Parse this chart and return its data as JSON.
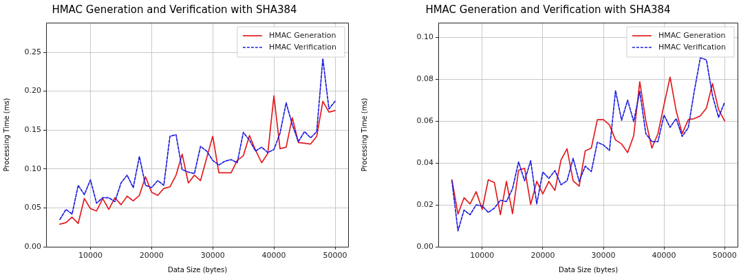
{
  "chart_data": [
    {
      "type": "line",
      "title": "HMAC Generation and Verification with SHA384",
      "xlabel": "Data Size (bytes)",
      "ylabel": "Processing Time (ms)",
      "x": [
        5000,
        6000,
        7000,
        8000,
        9000,
        10000,
        11000,
        12000,
        13000,
        14000,
        15000,
        16000,
        17000,
        18000,
        19000,
        20000,
        21000,
        22000,
        23000,
        24000,
        25000,
        26000,
        27000,
        28000,
        29000,
        30000,
        31000,
        32000,
        33000,
        34000,
        35000,
        36000,
        37000,
        38000,
        39000,
        40000,
        41000,
        42000,
        43000,
        44000,
        45000,
        46000,
        47000,
        48000,
        49000,
        50000
      ],
      "series": [
        {
          "name": "HMAC Generation",
          "color": "#e31a1c",
          "line_style": "solid",
          "values": [
            0.029,
            0.031,
            0.038,
            0.03,
            0.062,
            0.049,
            0.046,
            0.062,
            0.048,
            0.063,
            0.054,
            0.065,
            0.059,
            0.066,
            0.09,
            0.07,
            0.066,
            0.075,
            0.077,
            0.092,
            0.119,
            0.082,
            0.092,
            0.085,
            0.114,
            0.142,
            0.095,
            0.095,
            0.095,
            0.111,
            0.117,
            0.143,
            0.124,
            0.108,
            0.12,
            0.194,
            0.126,
            0.128,
            0.166,
            0.134,
            0.133,
            0.132,
            0.142,
            0.187,
            0.173,
            0.175
          ]
        },
        {
          "name": "HMAC Verification",
          "color": "#1c1ce0",
          "line_style": "dashed",
          "values": [
            0.035,
            0.048,
            0.042,
            0.079,
            0.067,
            0.086,
            0.056,
            0.063,
            0.063,
            0.058,
            0.082,
            0.092,
            0.076,
            0.116,
            0.079,
            0.076,
            0.085,
            0.079,
            0.142,
            0.144,
            0.099,
            0.096,
            0.094,
            0.129,
            0.123,
            0.111,
            0.105,
            0.11,
            0.112,
            0.108,
            0.147,
            0.137,
            0.123,
            0.128,
            0.121,
            0.125,
            0.146,
            0.185,
            0.157,
            0.135,
            0.148,
            0.14,
            0.148,
            0.242,
            0.177,
            0.187
          ]
        }
      ],
      "xlim": [
        2750,
        52250
      ],
      "xticks": [
        10000,
        20000,
        30000,
        40000,
        50000
      ],
      "ylim": [
        0,
        0.288
      ],
      "yticks": [
        {
          "value": 0,
          "label": "0.00"
        },
        {
          "value": 0.05,
          "label": "0.05"
        },
        {
          "value": 0.1,
          "label": "0.10"
        },
        {
          "value": 0.15,
          "label": "0.15"
        },
        {
          "value": 0.2,
          "label": "0.20"
        },
        {
          "value": 0.25,
          "label": "0.25"
        }
      ],
      "grid": true,
      "legend": "top right",
      "marker": "none"
    },
    {
      "type": "line",
      "title": "HMAC Generation and Verification with SHA384",
      "xlabel": "Data Size (bytes)",
      "ylabel": "Processing Time (ms)",
      "x": [
        5000,
        6000,
        7000,
        8000,
        9000,
        10000,
        11000,
        12000,
        13000,
        14000,
        15000,
        16000,
        17000,
        18000,
        19000,
        20000,
        21000,
        22000,
        23000,
        24000,
        25000,
        26000,
        27000,
        28000,
        29000,
        30000,
        31000,
        32000,
        33000,
        34000,
        35000,
        36000,
        37000,
        38000,
        39000,
        40000,
        41000,
        42000,
        43000,
        44000,
        45000,
        46000,
        47000,
        48000,
        49000,
        50000
      ],
      "series": [
        {
          "name": "HMAC Generation",
          "color": "#e31a1c",
          "line_style": "solid",
          "values": [
            0.032,
            0.0156,
            0.0234,
            0.0205,
            0.0263,
            0.0178,
            0.032,
            0.0307,
            0.0153,
            0.0312,
            0.0158,
            0.0365,
            0.0375,
            0.0202,
            0.0312,
            0.0252,
            0.0312,
            0.0269,
            0.0414,
            0.0468,
            0.0315,
            0.0289,
            0.0458,
            0.0471,
            0.0607,
            0.0607,
            0.0582,
            0.051,
            0.0491,
            0.045,
            0.053,
            0.0788,
            0.0601,
            0.0471,
            0.054,
            0.0678,
            0.081,
            0.065,
            0.054,
            0.0607,
            0.0612,
            0.0625,
            0.0662,
            0.0779,
            0.0656,
            0.0601
          ]
        },
        {
          "name": "HMAC Verification",
          "color": "#1c1ce0",
          "line_style": "dashed",
          "values": [
            0.0315,
            0.0076,
            0.0175,
            0.0153,
            0.02,
            0.0195,
            0.0164,
            0.0184,
            0.0222,
            0.0216,
            0.0277,
            0.0405,
            0.0315,
            0.0411,
            0.0205,
            0.0357,
            0.0326,
            0.0364,
            0.0296,
            0.0315,
            0.0422,
            0.0312,
            0.0385,
            0.0359,
            0.0499,
            0.0486,
            0.046,
            0.0746,
            0.0604,
            0.07,
            0.0598,
            0.0742,
            0.054,
            0.0502,
            0.0502,
            0.0629,
            0.057,
            0.0612,
            0.0527,
            0.0568,
            0.0744,
            0.0903,
            0.0892,
            0.0722,
            0.0618,
            0.0689
          ]
        }
      ],
      "xlim": [
        2750,
        52250
      ],
      "xticks": [
        10000,
        20000,
        30000,
        40000,
        50000
      ],
      "ylim": [
        0,
        0.107
      ],
      "yticks": [
        {
          "value": 0,
          "label": "0.00"
        },
        {
          "value": 0.02,
          "label": "0.02"
        },
        {
          "value": 0.04,
          "label": "0.04"
        },
        {
          "value": 0.06,
          "label": "0.06"
        },
        {
          "value": 0.08,
          "label": "0.08"
        },
        {
          "value": 0.1,
          "label": "0.10"
        }
      ],
      "grid": true,
      "legend": "top right",
      "marker": "none"
    }
  ]
}
